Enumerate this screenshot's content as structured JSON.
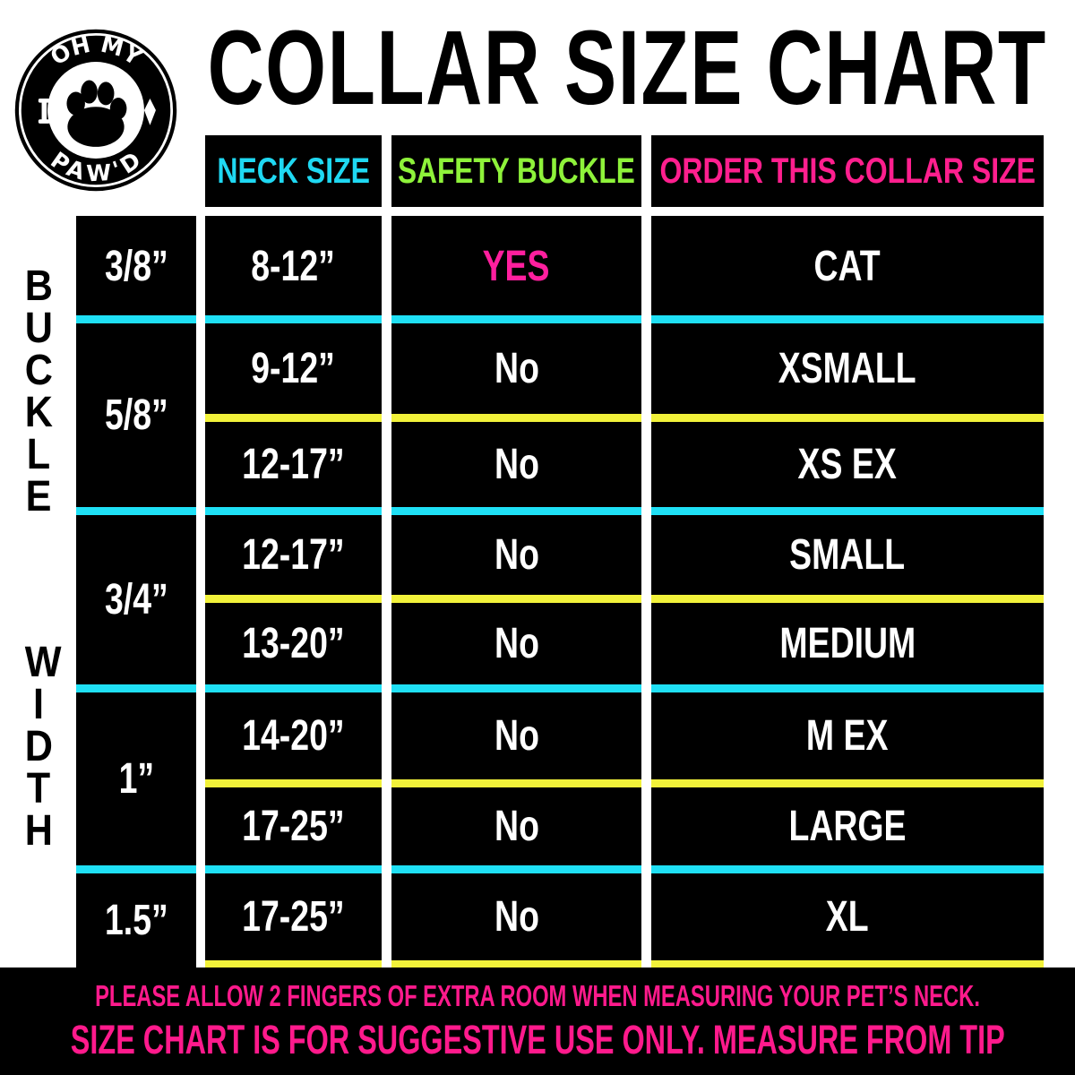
{
  "logo": {
    "text_top": "OH MY",
    "text_bottom": "PAW'D",
    "icon": "paw-icon"
  },
  "title": "COLLAR SIZE CHART",
  "headers": [
    {
      "label": "NECK SIZE",
      "color": "#1fd8f2"
    },
    {
      "label": "SAFETY BUCKLE",
      "color": "#8ef23a"
    },
    {
      "label": "ORDER THIS COLLAR SIZE",
      "color": "#ff1f8e"
    }
  ],
  "side_label": {
    "word1": "BUCKLE",
    "word2": "WIDTH"
  },
  "buckle_widths": [
    "3/8”",
    "5/8”",
    "3/4”",
    "1”",
    "1.5”"
  ],
  "rows": [
    {
      "neck": "8-12”",
      "safety": "YES",
      "size": "CAT"
    },
    {
      "neck": "9-12”",
      "safety": "No",
      "size": "XSMALL"
    },
    {
      "neck": "12-17”",
      "safety": "No",
      "size": "XS EX"
    },
    {
      "neck": "12-17”",
      "safety": "No",
      "size": "SMALL"
    },
    {
      "neck": "13-20”",
      "safety": "No",
      "size": "MEDIUM"
    },
    {
      "neck": "14-20”",
      "safety": "No",
      "size": "M EX"
    },
    {
      "neck": "17-25”",
      "safety": "No",
      "size": "LARGE"
    },
    {
      "neck": "17-25”",
      "safety": "No",
      "size": "XL"
    }
  ],
  "colors": {
    "cyan": "#1fe0f5",
    "yellow": "#f2f23a",
    "pink": "#ff1a8c",
    "yes": "#ff1f9e"
  },
  "footer": {
    "line1": "PLEASE ALLOW 2 FINGERS OF EXTRA ROOM WHEN MEASURING YOUR PET’S NECK.",
    "line2": "SIZE CHART IS FOR SUGGESTIVE USE ONLY. MEASURE FROM TIP"
  }
}
